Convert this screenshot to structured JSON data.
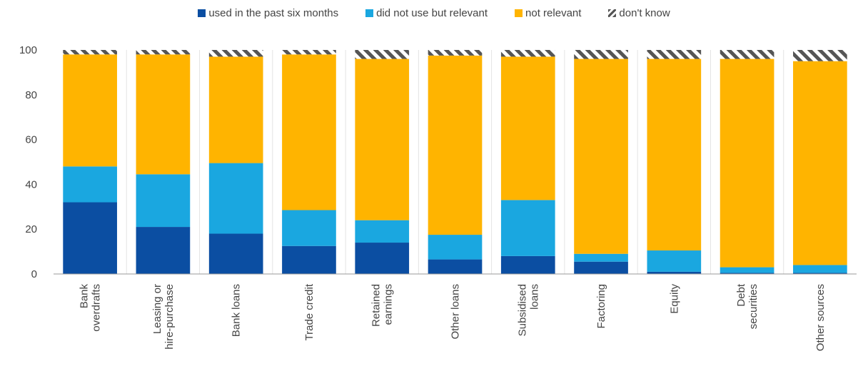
{
  "chart_data": {
    "type": "bar",
    "stacked": true,
    "ylim": [
      0,
      100
    ],
    "yticks": [
      0,
      20,
      40,
      60,
      80,
      100
    ],
    "grid": false,
    "legend_position": "top",
    "categories": [
      [
        "Bank",
        "overdrafts"
      ],
      [
        "Leasing or",
        "hire-purchase"
      ],
      [
        "Bank loans"
      ],
      [
        "Trade credit"
      ],
      [
        "Retained",
        "earnings"
      ],
      [
        "Other loans"
      ],
      [
        "Subsidised",
        "loans"
      ],
      [
        "Factoring"
      ],
      [
        "Equity"
      ],
      [
        "Debt",
        "securities"
      ],
      [
        "Other sources"
      ]
    ],
    "series": [
      {
        "name": "used in the past six months",
        "color": "#0b4ea2",
        "values": [
          32,
          21,
          18,
          12.5,
          14,
          6.5,
          8,
          5.5,
          1,
          0.5,
          0.5
        ]
      },
      {
        "name": "did not use but relevant",
        "color": "#1aa7e0",
        "values": [
          16,
          23.5,
          31.5,
          16,
          10,
          11,
          25,
          3.5,
          9.5,
          2.5,
          3.5
        ]
      },
      {
        "name": "not relevant",
        "color": "#ffb400",
        "values": [
          50,
          53.5,
          47.5,
          69.5,
          72,
          80,
          64,
          87,
          85.5,
          93,
          91
        ]
      },
      {
        "name": "don't know",
        "color": "#555555",
        "pattern": "hatch",
        "values": [
          2,
          2,
          3,
          2,
          4,
          2.5,
          3,
          4,
          4,
          4,
          5
        ]
      }
    ]
  }
}
